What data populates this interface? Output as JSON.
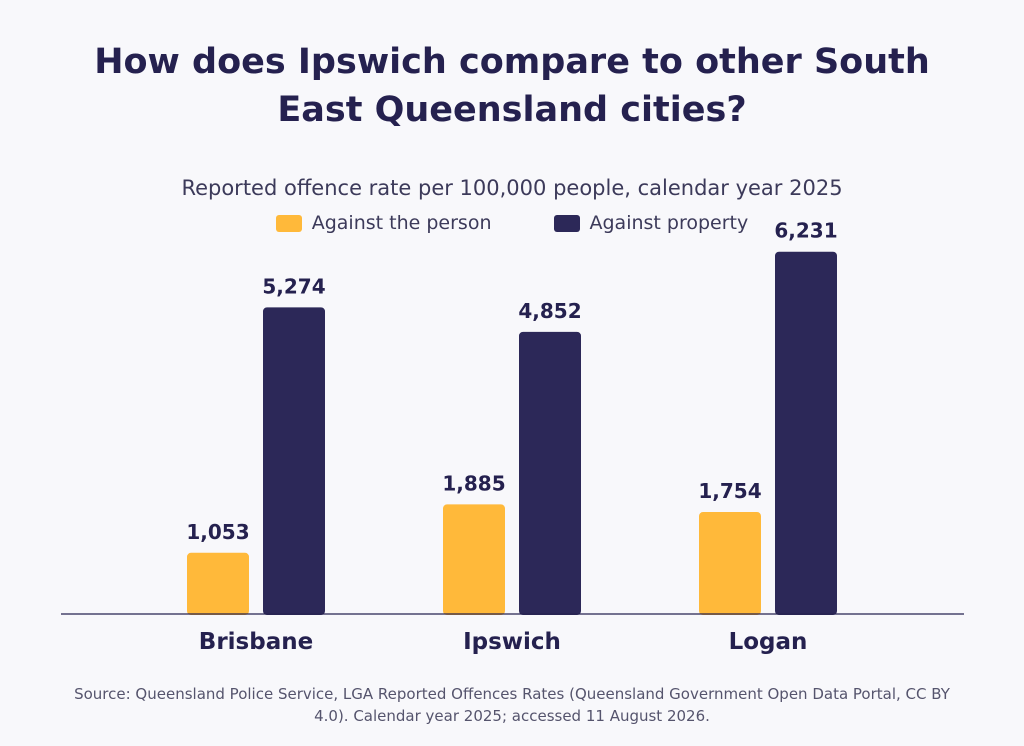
{
  "chart_data": {
    "type": "bar",
    "title": "How does Ipswich compare to other South East Queensland cities?",
    "subtitle": "Reported offence rate per 100,000 people, calendar year 2025",
    "categories": [
      "Brisbane",
      "Ipswich",
      "Logan"
    ],
    "series": [
      {
        "name": "Against the person",
        "values": [
          1053,
          1885,
          1754
        ],
        "labels": [
          "1,053",
          "1,885",
          "1,754"
        ],
        "color": "#ffb93a"
      },
      {
        "name": "Against property",
        "values": [
          5274,
          4852,
          6231
        ],
        "labels": [
          "5,274",
          "4,852",
          "6,231"
        ],
        "color": "#2c2858"
      }
    ],
    "ylim": [
      0,
      7000
    ],
    "grid": false,
    "legend_position": "top-center",
    "source": "Source: Queensland Police Service, LGA Reported Offences Rates (Queensland Government Open Data Portal, CC BY 4.0). Calendar year 2025; accessed 11 August 2026."
  }
}
